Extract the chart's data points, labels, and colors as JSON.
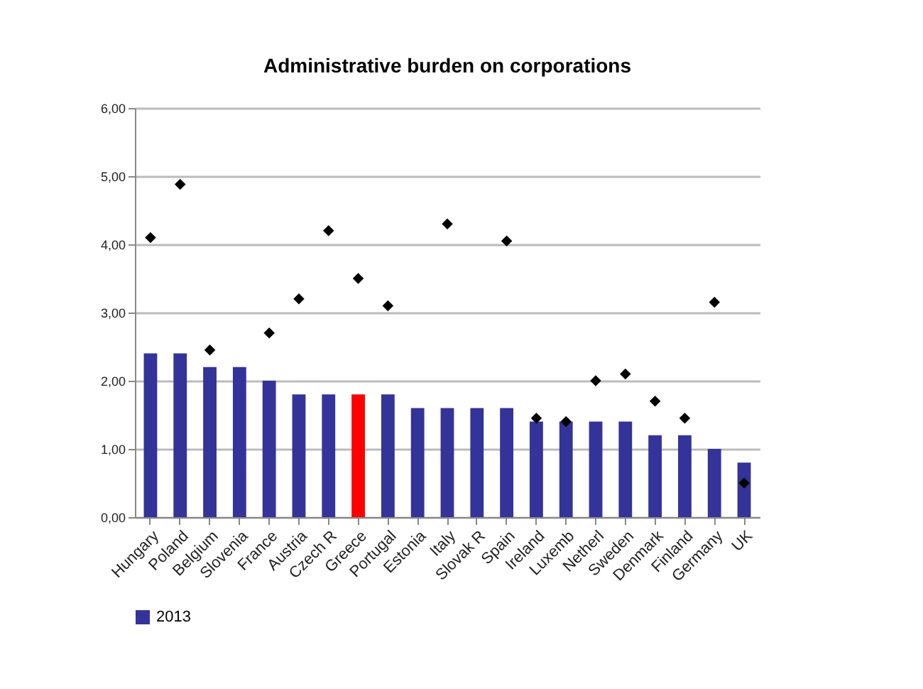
{
  "chart_data": {
    "type": "bar",
    "title": "Administrative burden on corporations",
    "categories": [
      "Hungary",
      "Poland",
      "Belgium",
      "Slovenia",
      "France",
      "Austria",
      "Czech R",
      "Greece",
      "Portugal",
      "Estonia",
      "Italy",
      "Slovak R",
      "Spain",
      "Ireland",
      "Luxemb",
      "Netherl",
      "Sweden",
      "Denmark",
      "Finland",
      "Germany",
      "UK"
    ],
    "series": [
      {
        "name": "2013",
        "color": "#333399",
        "colors": [
          "#333399",
          "#333399",
          "#333399",
          "#333399",
          "#333399",
          "#333399",
          "#333399",
          "#ff0000",
          "#333399",
          "#333399",
          "#333399",
          "#333399",
          "#333399",
          "#333399",
          "#333399",
          "#333399",
          "#333399",
          "#333399",
          "#333399",
          "#333399",
          "#333399"
        ],
        "values": [
          2.4,
          2.4,
          2.2,
          2.2,
          2.0,
          1.8,
          1.8,
          1.8,
          1.8,
          1.6,
          1.6,
          1.6,
          1.6,
          1.4,
          1.4,
          1.4,
          1.4,
          1.2,
          1.2,
          1.0,
          0.8
        ]
      },
      {
        "type": "scatter",
        "color": "#000000",
        "marker": "diamond",
        "values": [
          4.1,
          4.88,
          2.45,
          null,
          2.7,
          3.2,
          4.2,
          3.5,
          3.1,
          null,
          4.3,
          null,
          4.05,
          1.45,
          1.4,
          2.0,
          2.1,
          1.7,
          1.45,
          3.15,
          0.5
        ]
      }
    ],
    "ylim": [
      0,
      6
    ],
    "yticks": [
      {
        "value": 0,
        "label": "0,00"
      },
      {
        "value": 1,
        "label": "1,00"
      },
      {
        "value": 2,
        "label": "2,00"
      },
      {
        "value": 3,
        "label": "3,00"
      },
      {
        "value": 4,
        "label": "4,00"
      },
      {
        "value": 5,
        "label": "5,00"
      },
      {
        "value": 6,
        "label": "6,00"
      }
    ],
    "grid": "y",
    "legend": "bottom"
  }
}
